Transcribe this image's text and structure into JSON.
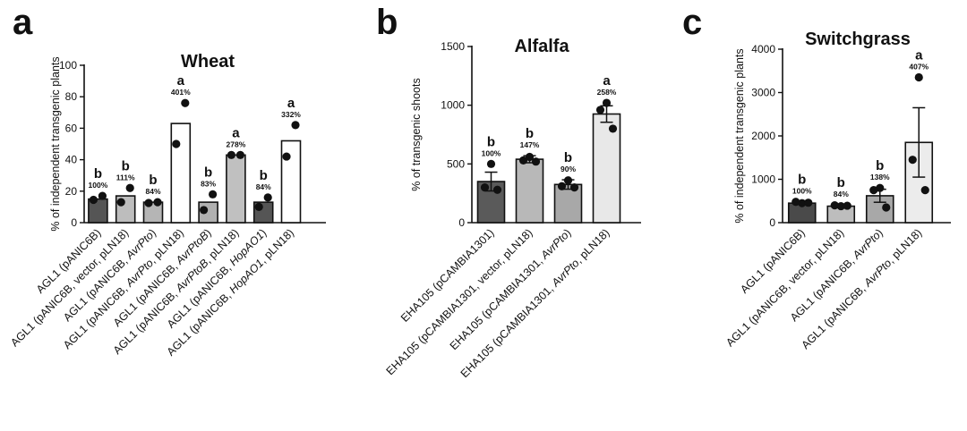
{
  "chart_data": [
    {
      "type": "bar",
      "panel_letter": "a",
      "title": "Wheat",
      "ylabel": "% of independent transgenic plants",
      "ylim": [
        0,
        100
      ],
      "yticks": [
        "0",
        "20",
        "40",
        "60",
        "80",
        "100"
      ],
      "categories": [
        [
          "AGL1 (pANIC6B)"
        ],
        [
          "AGL1 (pANIC6B, vector, pLN18)"
        ],
        [
          "AGL1 (pANIC6B, ",
          {
            "i": "AvrPto"
          },
          ")"
        ],
        [
          "AGL1 (pANIC6B, ",
          {
            "i": "AvrPto"
          },
          ", pLN18)"
        ],
        [
          "AGL1 (pANIC6B, ",
          {
            "i": "AvrPtoB"
          },
          ")"
        ],
        [
          "AGL1 (pANIC6B, ",
          {
            "i": "AvrPtoB"
          },
          ", pLN18)"
        ],
        [
          "AGL1 (pANIC6B, ",
          {
            "i": "HopAO1"
          },
          ")"
        ],
        [
          "AGL1 (pANIC6B, ",
          {
            "i": "HopAO1"
          },
          ", pLN18)"
        ]
      ],
      "values": [
        15,
        17,
        13,
        63,
        13,
        43,
        13,
        52
      ],
      "errors": [
        null,
        null,
        null,
        null,
        null,
        null,
        null,
        null
      ],
      "points": [
        [
          14.5,
          17
        ],
        [
          13,
          22
        ],
        [
          12.5,
          13
        ],
        [
          50,
          76
        ],
        [
          8,
          18
        ],
        [
          43,
          43
        ],
        [
          10,
          16
        ],
        [
          42,
          62
        ]
      ],
      "bar_fills": [
        "#555555",
        "#bdbdbd",
        "#b5b5b5",
        "#ffffff",
        "#b0b0b0",
        "#c0c0c0",
        "#555555",
        "#ffffff"
      ],
      "group_letters": [
        "b",
        "b",
        "b",
        "a",
        "b",
        "a",
        "b",
        "a"
      ],
      "percent_labels": [
        "100%",
        "111%",
        "84%",
        "401%",
        "83%",
        "278%",
        "84%",
        "332%"
      ]
    },
    {
      "type": "bar",
      "panel_letter": "b",
      "title": "Alfalfa",
      "ylabel": "% of transgenic shoots",
      "ylim": [
        0,
        1500
      ],
      "yticks": [
        "0",
        "500",
        "1000",
        "1500"
      ],
      "categories": [
        [
          "EHA105 (pCAMBIA1301)"
        ],
        [
          "EHA105 (pCAMBIA1301, vector, pLN18)"
        ],
        [
          "EHA105 (pCAMBIA1301, ",
          {
            "i": "AvrPto"
          },
          ")"
        ],
        [
          "EHA105 (pCAMBIA1301, ",
          {
            "i": "AvrPto"
          },
          ", pLN18)"
        ]
      ],
      "values": [
        350,
        540,
        325,
        925
      ],
      "errors": [
        80,
        30,
        40,
        70
      ],
      "points": [
        [
          500,
          300,
          280
        ],
        [
          560,
          530,
          520
        ],
        [
          360,
          310,
          300
        ],
        [
          1020,
          960,
          800
        ]
      ],
      "bar_fills": [
        "#5a5a5a",
        "#b8b8b8",
        "#a8a8a8",
        "#e8e8e8"
      ],
      "group_letters": [
        "b",
        "b",
        "b",
        "a"
      ],
      "percent_labels": [
        "100%",
        "147%",
        "90%",
        "258%"
      ]
    },
    {
      "type": "bar",
      "panel_letter": "c",
      "title": "Switchgrass",
      "ylabel": "% of independent transgenic plants",
      "ylim": [
        0,
        4000
      ],
      "yticks": [
        "0",
        "1000",
        "2000",
        "3000",
        "4000"
      ],
      "categories": [
        [
          "AGL1 (pANIC6B)"
        ],
        [
          "AGL1 (pANIC6B, vector, pLN18)"
        ],
        [
          "AGL1 (pANIC6B, ",
          {
            "i": "AvrPto"
          },
          ")"
        ],
        [
          "AGL1 (pANIC6B, ",
          {
            "i": "AvrPto"
          },
          ", pLN18)"
        ]
      ],
      "values": [
        450,
        380,
        620,
        1850
      ],
      "errors": [
        30,
        30,
        150,
        800
      ],
      "points": [
        [
          450,
          480,
          460
        ],
        [
          380,
          400,
          390
        ],
        [
          800,
          750,
          350
        ],
        [
          3350,
          1450,
          750
        ]
      ],
      "bar_fills": [
        "#4a4a4a",
        "#bdbdbd",
        "#a8a8a8",
        "#ececec"
      ],
      "group_letters": [
        "b",
        "b",
        "b",
        "a"
      ],
      "percent_labels": [
        "100%",
        "84%",
        "138%",
        "407%"
      ]
    }
  ]
}
